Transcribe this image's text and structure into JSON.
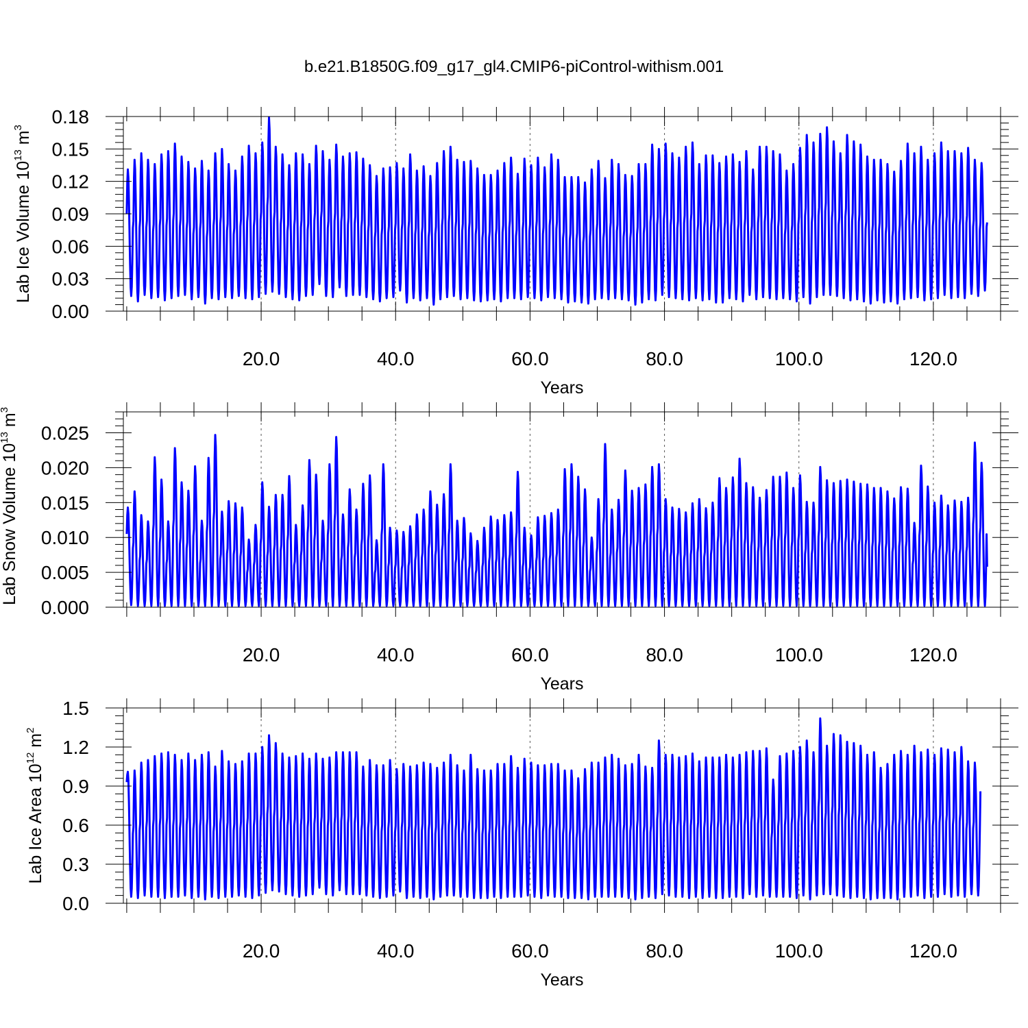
{
  "title": "b.e21.B1850G.f09_g17_gl4.CMIP6-piControl-withism.001",
  "colors": {
    "line": "#0000ff",
    "frame": "#000000",
    "grid": "#555555",
    "background": "#ffffff"
  },
  "chart_data": [
    {
      "type": "line",
      "xlabel": "Years",
      "ylabel": {
        "text": "Lab Ice Volume 10",
        "exponent": "13",
        "unit_text": " m",
        "unit_exponent": "3"
      },
      "xlim": [
        -0.5,
        130.0
      ],
      "ylim": [
        0.0,
        0.18
      ],
      "xticks": [
        20,
        40,
        60,
        80,
        100,
        120
      ],
      "xtick_labels": [
        "20.0",
        "40.0",
        "60.0",
        "80.0",
        "100.0",
        "120.0"
      ],
      "yticks": [
        0.0,
        0.03,
        0.06,
        0.09,
        0.12,
        0.15,
        0.18
      ],
      "ytick_labels": [
        "0.00",
        "0.03",
        "0.06",
        "0.09",
        "0.12",
        "0.15",
        "0.18"
      ],
      "grid": "vertical dashed at major x ticks",
      "series": [
        {
          "color": "#0000ff",
          "description": "monthly seasonal cycle, one peak per year",
          "annual_peaks": [
            0.131,
            0.14,
            0.146,
            0.14,
            0.136,
            0.145,
            0.148,
            0.155,
            0.143,
            0.138,
            0.132,
            0.139,
            0.13,
            0.146,
            0.15,
            0.136,
            0.13,
            0.143,
            0.153,
            0.146,
            0.156,
            0.179,
            0.152,
            0.145,
            0.135,
            0.146,
            0.145,
            0.136,
            0.153,
            0.148,
            0.14,
            0.154,
            0.143,
            0.146,
            0.147,
            0.141,
            0.135,
            0.125,
            0.132,
            0.133,
            0.137,
            0.132,
            0.145,
            0.13,
            0.134,
            0.125,
            0.137,
            0.148,
            0.152,
            0.14,
            0.138,
            0.139,
            0.132,
            0.126,
            0.126,
            0.13,
            0.137,
            0.142,
            0.127,
            0.141,
            0.135,
            0.142,
            0.133,
            0.145,
            0.14,
            0.124,
            0.124,
            0.124,
            0.119,
            0.131,
            0.139,
            0.123,
            0.14,
            0.136,
            0.126,
            0.125,
            0.136,
            0.136,
            0.154,
            0.15,
            0.155,
            0.146,
            0.142,
            0.152,
            0.156,
            0.136,
            0.144,
            0.144,
            0.137,
            0.143,
            0.145,
            0.138,
            0.148,
            0.131,
            0.152,
            0.152,
            0.148,
            0.145,
            0.13,
            0.136,
            0.151,
            0.163,
            0.156,
            0.164,
            0.17,
            0.157,
            0.146,
            0.163,
            0.157,
            0.154,
            0.143,
            0.14,
            0.14,
            0.136,
            0.129,
            0.139,
            0.155,
            0.146,
            0.152,
            0.14,
            0.146,
            0.156,
            0.148,
            0.148,
            0.146,
            0.151,
            0.14,
            0.137
          ],
          "annual_minima": [
            0.014,
            0.009,
            0.015,
            0.012,
            0.013,
            0.01,
            0.012,
            0.014,
            0.015,
            0.011,
            0.013,
            0.007,
            0.012,
            0.011,
            0.013,
            0.012,
            0.014,
            0.012,
            0.011,
            0.013,
            0.016,
            0.018,
            0.016,
            0.013,
            0.011,
            0.01,
            0.014,
            0.015,
            0.025,
            0.014,
            0.013,
            0.022,
            0.014,
            0.015,
            0.015,
            0.013,
            0.011,
            0.009,
            0.012,
            0.013,
            0.019,
            0.008,
            0.012,
            0.01,
            0.012,
            0.006,
            0.011,
            0.013,
            0.014,
            0.011,
            0.012,
            0.01,
            0.009,
            0.01,
            0.011,
            0.009,
            0.012,
            0.012,
            0.011,
            0.013,
            0.012,
            0.01,
            0.013,
            0.012,
            0.011,
            0.008,
            0.009,
            0.008,
            0.007,
            0.011,
            0.012,
            0.011,
            0.012,
            0.011,
            0.01,
            0.006,
            0.008,
            0.011,
            0.01,
            0.015,
            0.013,
            0.012,
            0.011,
            0.01,
            0.012,
            0.01,
            0.011,
            0.008,
            0.008,
            0.012,
            0.011,
            0.009,
            0.015,
            0.011,
            0.013,
            0.012,
            0.011,
            0.012,
            0.011,
            0.009,
            0.013,
            0.007,
            0.013,
            0.015,
            0.015,
            0.014,
            0.012,
            0.01,
            0.011,
            0.009,
            0.007,
            0.01,
            0.008,
            0.009,
            0.007,
            0.011,
            0.012,
            0.013,
            0.01,
            0.011,
            0.012,
            0.015,
            0.012,
            0.013,
            0.012,
            0.016,
            0.014,
            0.019
          ],
          "start_value": 0.09,
          "end_value": 0.082
        }
      ]
    },
    {
      "type": "line",
      "xlabel": "Years",
      "ylabel": {
        "text": "Lab Snow Volume 10",
        "exponent": "13",
        "unit_text": " m",
        "unit_exponent": "3"
      },
      "xlim": [
        -0.5,
        130.0
      ],
      "ylim": [
        0.0,
        0.028
      ],
      "xticks": [
        20,
        40,
        60,
        80,
        100,
        120
      ],
      "xtick_labels": [
        "20.0",
        "40.0",
        "60.0",
        "80.0",
        "100.0",
        "120.0"
      ],
      "yticks": [
        0.0,
        0.005,
        0.01,
        0.015,
        0.02,
        0.025
      ],
      "ytick_labels": [
        "0.000",
        "0.005",
        "0.010",
        "0.015",
        "0.020",
        "0.025"
      ],
      "grid": "vertical dashed at major x ticks",
      "series": [
        {
          "color": "#0000ff",
          "description": "monthly seasonal cycle, one peak per year",
          "annual_peaks": [
            0.0143,
            0.0166,
            0.0132,
            0.0123,
            0.0215,
            0.0183,
            0.0123,
            0.0228,
            0.0179,
            0.0167,
            0.0202,
            0.0124,
            0.0214,
            0.0247,
            0.0137,
            0.0152,
            0.0149,
            0.0143,
            0.0097,
            0.0118,
            0.0179,
            0.0144,
            0.0161,
            0.0161,
            0.0188,
            0.0118,
            0.0146,
            0.0211,
            0.019,
            0.0124,
            0.0205,
            0.0244,
            0.0133,
            0.0169,
            0.014,
            0.0177,
            0.0189,
            0.0096,
            0.0205,
            0.0114,
            0.011,
            0.0108,
            0.0116,
            0.0133,
            0.014,
            0.0166,
            0.0147,
            0.0162,
            0.0205,
            0.0124,
            0.0128,
            0.0106,
            0.0095,
            0.0114,
            0.013,
            0.0125,
            0.0132,
            0.0136,
            0.0194,
            0.0114,
            0.0103,
            0.0129,
            0.0131,
            0.0135,
            0.014,
            0.0198,
            0.0205,
            0.0187,
            0.0169,
            0.01,
            0.0155,
            0.0234,
            0.014,
            0.0154,
            0.0196,
            0.0167,
            0.0171,
            0.0176,
            0.0201,
            0.0205,
            0.0155,
            0.0143,
            0.0141,
            0.0136,
            0.0149,
            0.0155,
            0.0142,
            0.015,
            0.0185,
            0.0171,
            0.0186,
            0.0213,
            0.0178,
            0.0172,
            0.0157,
            0.0168,
            0.0187,
            0.0187,
            0.0193,
            0.0171,
            0.0189,
            0.0151,
            0.015,
            0.0201,
            0.0182,
            0.0178,
            0.0181,
            0.0183,
            0.018,
            0.0177,
            0.0176,
            0.0171,
            0.0171,
            0.0166,
            0.0156,
            0.0172,
            0.017,
            0.0121,
            0.0203,
            0.0173,
            0.015,
            0.016,
            0.0146,
            0.0153,
            0.0151,
            0.0157,
            0.0236,
            0.0207
          ],
          "annual_minima": [
            0.0003,
            0.0002,
            0.0002,
            0.0002,
            0.0002,
            0.0002,
            0.0002,
            0.0002,
            0.0002,
            0.0002,
            0.0002,
            0.0002,
            0.0002,
            0.0002,
            0.0002,
            0.0002,
            0.0002,
            0.0002,
            0.0002,
            0.0002,
            0.0002,
            0.0002,
            0.0002,
            0.0002,
            0.0002,
            0.0002,
            0.0002,
            0.0002,
            0.0002,
            0.0002,
            0.0002,
            0.0002,
            0.0002,
            0.0002,
            0.0002,
            0.0002,
            0.0002,
            0.0002,
            0.0002,
            0.0002,
            0.0002,
            0.0002,
            0.0002,
            0.0002,
            0.0002,
            0.0002,
            0.0002,
            0.0002,
            0.0002,
            0.0002,
            0.0002,
            0.0002,
            0.0002,
            0.0002,
            0.0002,
            0.0002,
            0.0002,
            0.0002,
            0.0002,
            0.0002,
            0.0002,
            0.0002,
            0.0002,
            0.0002,
            0.0002,
            0.0002,
            0.0002,
            0.0002,
            0.0002,
            0.0002,
            0.0002,
            0.0002,
            0.0002,
            0.0002,
            0.0002,
            0.0002,
            0.0002,
            0.0002,
            0.0002,
            0.0002,
            0.0002,
            0.0002,
            0.0002,
            0.0002,
            0.0002,
            0.0002,
            0.0002,
            0.0002,
            0.0002,
            0.0002,
            0.0002,
            0.0002,
            0.0002,
            0.0002,
            0.0002,
            0.0002,
            0.0002,
            0.0002,
            0.0002,
            0.0002,
            0.0002,
            0.0002,
            0.0002,
            0.0002,
            0.0002,
            0.0002,
            0.0002,
            0.0002,
            0.0002,
            0.0002,
            0.0002,
            0.0002,
            0.0002,
            0.0002,
            0.0002,
            0.0002,
            0.0002,
            0.0002,
            0.0002,
            0.0002,
            0.0002,
            0.0002,
            0.0002,
            0.0002,
            0.0002,
            0.0002,
            0.0002,
            0.0002
          ],
          "start_value": 0.0105,
          "end_value": 0.0058
        }
      ]
    },
    {
      "type": "line",
      "xlabel": "Years",
      "ylabel": {
        "text": "Lab Ice Area 10",
        "exponent": "12",
        "unit_text": " m",
        "unit_exponent": "2"
      },
      "xlim": [
        -0.5,
        130.0
      ],
      "ylim": [
        0.0,
        1.5
      ],
      "xticks": [
        20,
        40,
        60,
        80,
        100,
        120
      ],
      "xtick_labels": [
        "20.0",
        "40.0",
        "60.0",
        "80.0",
        "100.0",
        "120.0"
      ],
      "yticks": [
        0.0,
        0.3,
        0.6,
        0.9,
        1.2,
        1.5
      ],
      "ytick_labels": [
        "0.0",
        "0.3",
        "0.6",
        "0.9",
        "1.2",
        "1.5"
      ],
      "grid": "vertical dashed at major x ticks",
      "series": [
        {
          "color": "#0000ff",
          "description": "monthly seasonal cycle, one peak per year",
          "annual_peaks": [
            1.01,
            1.02,
            1.08,
            1.1,
            1.13,
            1.15,
            1.16,
            1.14,
            1.1,
            1.15,
            1.1,
            1.14,
            1.16,
            1.05,
            1.17,
            1.09,
            1.07,
            1.09,
            1.15,
            1.15,
            1.2,
            1.29,
            1.23,
            1.15,
            1.12,
            1.13,
            1.15,
            1.11,
            1.15,
            1.11,
            1.12,
            1.16,
            1.16,
            1.16,
            1.16,
            1.05,
            1.1,
            1.06,
            1.06,
            1.1,
            1.03,
            1.07,
            1.05,
            1.06,
            1.08,
            1.07,
            1.04,
            1.08,
            1.14,
            1.06,
            1.02,
            1.14,
            1.03,
            1.02,
            1.02,
            1.07,
            1.07,
            1.13,
            1.04,
            1.11,
            1.08,
            1.06,
            1.06,
            1.07,
            1.07,
            1.02,
            1.02,
            0.96,
            1.03,
            1.08,
            1.08,
            1.12,
            1.14,
            1.11,
            1.06,
            1.07,
            1.14,
            1.05,
            1.04,
            1.25,
            1.14,
            1.14,
            1.12,
            1.13,
            1.15,
            1.09,
            1.12,
            1.12,
            1.12,
            1.14,
            1.12,
            1.14,
            1.16,
            1.17,
            1.17,
            1.19,
            0.95,
            1.13,
            1.15,
            1.17,
            1.2,
            1.25,
            1.16,
            1.42,
            1.21,
            1.3,
            1.29,
            1.24,
            1.23,
            1.21,
            1.14,
            1.16,
            1.04,
            1.07,
            1.14,
            1.17,
            1.14,
            1.21,
            1.16,
            1.18,
            1.14,
            1.19,
            1.18,
            1.16,
            1.2,
            1.09,
            1.08
          ],
          "annual_minima": [
            0.05,
            0.04,
            0.06,
            0.05,
            0.05,
            0.04,
            0.05,
            0.05,
            0.06,
            0.04,
            0.05,
            0.03,
            0.05,
            0.04,
            0.05,
            0.05,
            0.06,
            0.05,
            0.04,
            0.06,
            0.08,
            0.1,
            0.09,
            0.07,
            0.06,
            0.05,
            0.06,
            0.07,
            0.12,
            0.07,
            0.06,
            0.1,
            0.07,
            0.07,
            0.07,
            0.06,
            0.05,
            0.04,
            0.05,
            0.06,
            0.09,
            0.04,
            0.05,
            0.04,
            0.05,
            0.03,
            0.05,
            0.06,
            0.06,
            0.05,
            0.05,
            0.04,
            0.04,
            0.04,
            0.05,
            0.04,
            0.05,
            0.05,
            0.05,
            0.06,
            0.05,
            0.04,
            0.06,
            0.05,
            0.05,
            0.04,
            0.04,
            0.04,
            0.03,
            0.05,
            0.05,
            0.05,
            0.05,
            0.05,
            0.04,
            0.03,
            0.04,
            0.05,
            0.04,
            0.07,
            0.06,
            0.05,
            0.05,
            0.04,
            0.05,
            0.04,
            0.05,
            0.04,
            0.04,
            0.05,
            0.05,
            0.04,
            0.07,
            0.05,
            0.06,
            0.05,
            0.05,
            0.05,
            0.05,
            0.04,
            0.06,
            0.03,
            0.06,
            0.07,
            0.07,
            0.06,
            0.05,
            0.04,
            0.05,
            0.04,
            0.03,
            0.04,
            0.04,
            0.04,
            0.03,
            0.05,
            0.05,
            0.06,
            0.04,
            0.05,
            0.05,
            0.07,
            0.05,
            0.06,
            0.05,
            0.07,
            0.06,
            0.09
          ],
          "start_value": 0.93,
          "end_value": 0.86
        }
      ]
    }
  ]
}
